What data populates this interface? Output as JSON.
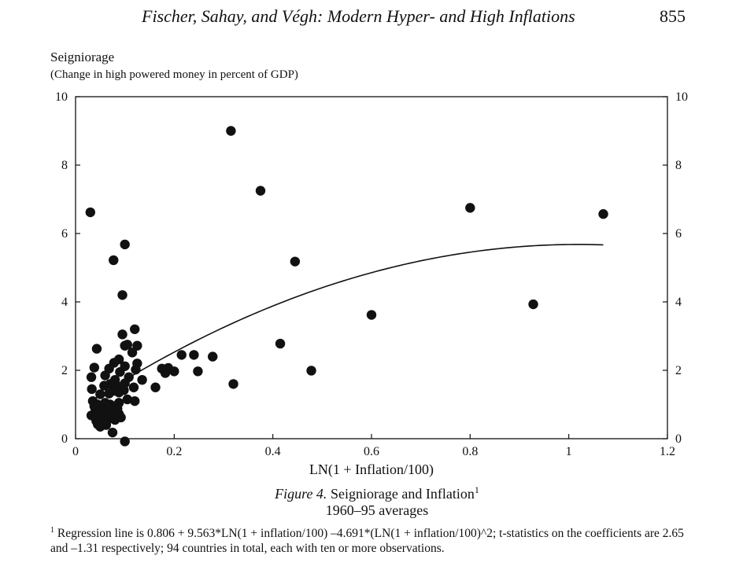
{
  "header": {
    "running_title": "Fischer, Sahay, and Végh: Modern Hyper- and High Inflations",
    "page_number": "855"
  },
  "caption": {
    "figure_label": "Figure 4.",
    "title": "Seigniorage and Inflation",
    "footnote_ref": "1",
    "subtitle": "1960–95 averages"
  },
  "footnote": {
    "marker": "1",
    "text": "Regression line is 0.806 + 9.563*LN(1 + inflation/100) –4.691*(LN(1 + inflation/100)^2; t-statistics on the coefficients are 2.65 and –1.31 respectively; 94 countries in total, each with ten or more observations."
  },
  "chart_data": {
    "type": "scatter",
    "ylabel": "Seigniorage",
    "ylabel_sub": "(Change in high powered money in percent of GDP)",
    "xlabel": "LN(1 + Inflation/100)",
    "xlim": [
      0,
      1.2
    ],
    "ylim": [
      0,
      10
    ],
    "x_ticks": [
      0,
      0.2,
      0.4,
      0.6,
      0.8,
      1,
      1.2
    ],
    "x_tick_labels": [
      "0",
      "0.2",
      "0.4",
      "0.6",
      "0.8",
      "1",
      "1.2"
    ],
    "y_ticks": [
      0,
      2,
      4,
      6,
      8,
      10
    ],
    "y_tick_labels": [
      "0",
      "2",
      "4",
      "6",
      "8",
      "10"
    ],
    "right_axis_labels": true,
    "grid": false,
    "points": [
      {
        "x": 0.03,
        "y": 6.62
      },
      {
        "x": 0.1,
        "y": 5.68
      },
      {
        "x": 0.077,
        "y": 5.22
      },
      {
        "x": 0.095,
        "y": 4.2
      },
      {
        "x": 0.315,
        "y": 9.0
      },
      {
        "x": 0.375,
        "y": 7.25
      },
      {
        "x": 0.445,
        "y": 5.18
      },
      {
        "x": 0.415,
        "y": 2.78
      },
      {
        "x": 0.478,
        "y": 1.99
      },
      {
        "x": 0.6,
        "y": 3.62
      },
      {
        "x": 0.8,
        "y": 6.75
      },
      {
        "x": 0.928,
        "y": 3.93
      },
      {
        "x": 1.07,
        "y": 6.57
      },
      {
        "x": 0.32,
        "y": 1.6
      },
      {
        "x": 0.215,
        "y": 2.45
      },
      {
        "x": 0.24,
        "y": 2.45
      },
      {
        "x": 0.278,
        "y": 2.4
      },
      {
        "x": 0.248,
        "y": 1.97
      },
      {
        "x": 0.175,
        "y": 2.05
      },
      {
        "x": 0.188,
        "y": 2.07
      },
      {
        "x": 0.2,
        "y": 1.97
      },
      {
        "x": 0.182,
        "y": 1.92
      },
      {
        "x": 0.162,
        "y": 1.5
      },
      {
        "x": 0.135,
        "y": 1.72
      },
      {
        "x": 0.12,
        "y": 3.2
      },
      {
        "x": 0.095,
        "y": 3.05
      },
      {
        "x": 0.125,
        "y": 2.72
      },
      {
        "x": 0.105,
        "y": 2.75
      },
      {
        "x": 0.115,
        "y": 2.52
      },
      {
        "x": 0.1,
        "y": 2.72
      },
      {
        "x": 0.043,
        "y": 2.63
      },
      {
        "x": 0.088,
        "y": 2.32
      },
      {
        "x": 0.078,
        "y": 2.22
      },
      {
        "x": 0.125,
        "y": 2.2
      },
      {
        "x": 0.038,
        "y": 2.08
      },
      {
        "x": 0.1,
        "y": 2.12
      },
      {
        "x": 0.122,
        "y": 2.02
      },
      {
        "x": 0.068,
        "y": 2.05
      },
      {
        "x": 0.09,
        "y": 1.95
      },
      {
        "x": 0.06,
        "y": 1.85
      },
      {
        "x": 0.108,
        "y": 1.8
      },
      {
        "x": 0.032,
        "y": 1.8
      },
      {
        "x": 0.08,
        "y": 1.72
      },
      {
        "x": 0.1,
        "y": 1.62
      },
      {
        "x": 0.07,
        "y": 1.6
      },
      {
        "x": 0.058,
        "y": 1.55
      },
      {
        "x": 0.088,
        "y": 1.52
      },
      {
        "x": 0.118,
        "y": 1.5
      },
      {
        "x": 0.033,
        "y": 1.45
      },
      {
        "x": 0.098,
        "y": 1.42
      },
      {
        "x": 0.078,
        "y": 1.4
      },
      {
        "x": 0.088,
        "y": 1.35
      },
      {
        "x": 0.068,
        "y": 1.32
      },
      {
        "x": 0.05,
        "y": 1.3
      },
      {
        "x": 0.105,
        "y": 1.15
      },
      {
        "x": 0.035,
        "y": 1.1
      },
      {
        "x": 0.06,
        "y": 1.05
      },
      {
        "x": 0.088,
        "y": 1.05
      },
      {
        "x": 0.12,
        "y": 1.1
      },
      {
        "x": 0.045,
        "y": 1.0
      },
      {
        "x": 0.07,
        "y": 1.0
      },
      {
        "x": 0.078,
        "y": 0.95
      },
      {
        "x": 0.052,
        "y": 0.92
      },
      {
        "x": 0.04,
        "y": 0.88
      },
      {
        "x": 0.085,
        "y": 0.88
      },
      {
        "x": 0.065,
        "y": 0.82
      },
      {
        "x": 0.055,
        "y": 0.78
      },
      {
        "x": 0.075,
        "y": 0.75
      },
      {
        "x": 0.04,
        "y": 0.72
      },
      {
        "x": 0.088,
        "y": 0.72
      },
      {
        "x": 0.032,
        "y": 0.68
      },
      {
        "x": 0.048,
        "y": 0.65
      },
      {
        "x": 0.06,
        "y": 0.62
      },
      {
        "x": 0.092,
        "y": 0.62
      },
      {
        "x": 0.068,
        "y": 0.58
      },
      {
        "x": 0.08,
        "y": 0.55
      },
      {
        "x": 0.042,
        "y": 0.52
      },
      {
        "x": 0.055,
        "y": 0.48
      },
      {
        "x": 0.045,
        "y": 0.42
      },
      {
        "x": 0.062,
        "y": 0.4
      },
      {
        "x": 0.05,
        "y": 0.35
      },
      {
        "x": 0.038,
        "y": 0.95
      },
      {
        "x": 0.075,
        "y": 0.18
      },
      {
        "x": 0.1,
        "y": -0.08
      }
    ],
    "regression_line": {
      "equation": "0.806 + 9.563*LN(1 + inflation/100) - 4.691*(LN(1 + inflation/100))^2",
      "x_range": [
        0.03,
        1.07
      ]
    }
  }
}
